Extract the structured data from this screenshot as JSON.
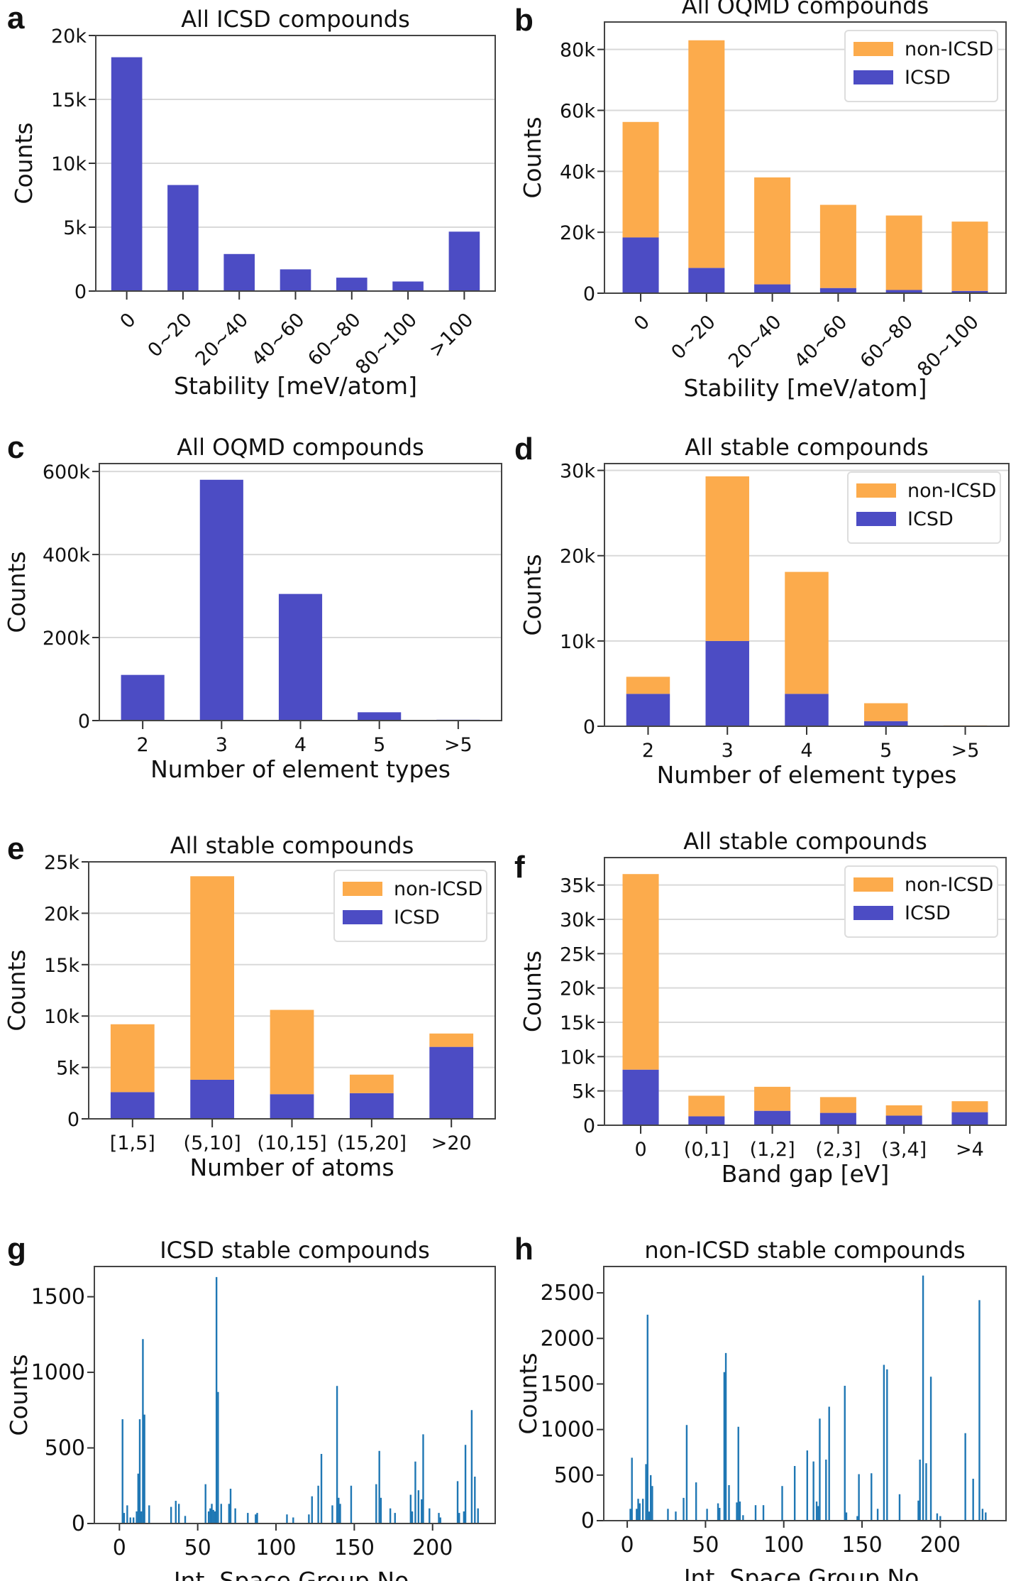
{
  "colors": {
    "icsd": "#4c4cc4",
    "non_icsd": "#fcab4c",
    "spike": "#1f77b4",
    "grid": "#d9d9d9"
  },
  "chart_data": [
    {
      "letter": "a",
      "type": "bar",
      "title": "All ICSD compounds",
      "xlabel": "Stability [meV/atom]",
      "ylabel": "Counts",
      "categories": [
        "0",
        "0~20",
        "20~40",
        "40~60",
        "60~80",
        "80~100",
        ">100"
      ],
      "ylim": [
        0,
        20000
      ],
      "yticks": [
        0,
        5000,
        10000,
        15000,
        20000
      ],
      "yticklabels": [
        "0",
        "5k",
        "10k",
        "15k",
        "20k"
      ],
      "rotate_xticks": true,
      "grid": true,
      "series": [
        {
          "values": [
            18300,
            8300,
            2900,
            1700,
            1050,
            750,
            4650
          ],
          "color": "icsd"
        }
      ]
    },
    {
      "letter": "b",
      "type": "bar",
      "stacked": true,
      "title": "All OQMD compounds",
      "xlabel": "Stability [meV/atom]",
      "ylabel": "Counts",
      "categories": [
        "0",
        "0~20",
        "20~40",
        "40~60",
        "60~80",
        "80~100"
      ],
      "ylim": [
        0,
        89000
      ],
      "yticks": [
        0,
        20000,
        40000,
        60000,
        80000
      ],
      "yticklabels": [
        "0",
        "20k",
        "40k",
        "60k",
        "80k"
      ],
      "rotate_xticks": true,
      "grid": true,
      "legend": "top-right",
      "series": [
        {
          "name": "ICSD",
          "values": [
            18300,
            8300,
            2900,
            1700,
            1050,
            750
          ],
          "color": "icsd"
        },
        {
          "name": "non-ICSD",
          "values": [
            37900,
            74700,
            35100,
            27300,
            24450,
            22750
          ],
          "color": "non_icsd"
        }
      ]
    },
    {
      "letter": "c",
      "type": "bar",
      "title": "All OQMD compounds",
      "xlabel": "Number of element types",
      "ylabel": "Counts",
      "categories": [
        "2",
        "3",
        "4",
        "5",
        ">5"
      ],
      "ylim": [
        0,
        619000
      ],
      "yticks": [
        0,
        200000,
        400000,
        600000
      ],
      "yticklabels": [
        "0",
        "200k",
        "400k",
        "600k"
      ],
      "grid": true,
      "series": [
        {
          "values": [
            110000,
            580000,
            305000,
            20000,
            2000
          ],
          "color": "icsd"
        }
      ]
    },
    {
      "letter": "d",
      "type": "bar",
      "stacked": true,
      "title": "All stable compounds",
      "xlabel": "Number of element types",
      "ylabel": "Counts",
      "categories": [
        "2",
        "3",
        "4",
        "5",
        ">5"
      ],
      "ylim": [
        0,
        30800
      ],
      "yticks": [
        0,
        10000,
        20000,
        30000
      ],
      "yticklabels": [
        "0",
        "10k",
        "20k",
        "30k"
      ],
      "grid": true,
      "legend": "top-right",
      "series": [
        {
          "name": "ICSD",
          "values": [
            3800,
            10000,
            3800,
            600,
            50
          ],
          "color": "icsd"
        },
        {
          "name": "non-ICSD",
          "values": [
            2000,
            19300,
            14300,
            2100,
            50
          ],
          "color": "non_icsd"
        }
      ]
    },
    {
      "letter": "e",
      "type": "bar",
      "stacked": true,
      "title": "All stable compounds",
      "xlabel": "Number of atoms",
      "ylabel": "Counts",
      "categories": [
        "[1,5]",
        "(5,10]",
        "(10,15]",
        "(15,20]",
        ">20"
      ],
      "ylim": [
        0,
        25000
      ],
      "yticks": [
        0,
        5000,
        10000,
        15000,
        20000,
        25000
      ],
      "yticklabels": [
        "0",
        "5k",
        "10k",
        "15k",
        "20k",
        "25k"
      ],
      "grid": true,
      "legend": "top-right",
      "series": [
        {
          "name": "ICSD",
          "values": [
            2600,
            3800,
            2400,
            2500,
            7000
          ],
          "color": "icsd"
        },
        {
          "name": "non-ICSD",
          "values": [
            6600,
            19800,
            8200,
            1800,
            1300
          ],
          "color": "non_icsd"
        }
      ]
    },
    {
      "letter": "f",
      "type": "bar",
      "stacked": true,
      "title": "All stable compounds",
      "xlabel": "Band gap [eV]",
      "ylabel": "Counts",
      "categories": [
        "0",
        "(0,1]",
        "(1,2]",
        "(2,3]",
        "(3,4]",
        ">4"
      ],
      "ylim": [
        0,
        39000
      ],
      "yticks": [
        0,
        5000,
        10000,
        15000,
        20000,
        25000,
        30000,
        35000
      ],
      "yticklabels": [
        "0",
        "5k",
        "10k",
        "15k",
        "20k",
        "25k",
        "30k",
        "35k"
      ],
      "grid": true,
      "legend": "top-right",
      "series": [
        {
          "name": "ICSD",
          "values": [
            8100,
            1300,
            2100,
            1800,
            1400,
            1900
          ],
          "color": "icsd"
        },
        {
          "name": "non-ICSD",
          "values": [
            28500,
            3000,
            3500,
            2300,
            1500,
            1600
          ],
          "color": "non_icsd"
        }
      ]
    },
    {
      "letter": "g",
      "type": "bar",
      "spikes": true,
      "title": "ICSD stable compounds",
      "xlabel": "Int. Space Group No.",
      "ylabel": "Counts",
      "xlim": [
        -16,
        240
      ],
      "xticks": [
        0,
        50,
        100,
        150,
        200
      ],
      "ylim": [
        0,
        1700
      ],
      "yticks": [
        0,
        500,
        1000,
        1500
      ],
      "grid": false,
      "points": [
        [
          2,
          690
        ],
        [
          3,
          70
        ],
        [
          5,
          120
        ],
        [
          7,
          40
        ],
        [
          9,
          40
        ],
        [
          11,
          80
        ],
        [
          12,
          330
        ],
        [
          13,
          690
        ],
        [
          14,
          80
        ],
        [
          15,
          1220
        ],
        [
          16,
          720
        ],
        [
          19,
          120
        ],
        [
          33,
          110
        ],
        [
          36,
          150
        ],
        [
          38,
          130
        ],
        [
          42,
          50
        ],
        [
          55,
          260
        ],
        [
          57,
          80
        ],
        [
          58,
          100
        ],
        [
          59,
          130
        ],
        [
          60,
          90
        ],
        [
          61,
          80
        ],
        [
          62,
          1630
        ],
        [
          63,
          870
        ],
        [
          65,
          130
        ],
        [
          70,
          130
        ],
        [
          71,
          230
        ],
        [
          74,
          100
        ],
        [
          82,
          70
        ],
        [
          87,
          60
        ],
        [
          88,
          70
        ],
        [
          107,
          60
        ],
        [
          111,
          40
        ],
        [
          121,
          60
        ],
        [
          123,
          180
        ],
        [
          127,
          250
        ],
        [
          129,
          460
        ],
        [
          136,
          120
        ],
        [
          139,
          910
        ],
        [
          140,
          170
        ],
        [
          141,
          130
        ],
        [
          148,
          250
        ],
        [
          164,
          260
        ],
        [
          166,
          480
        ],
        [
          167,
          170
        ],
        [
          173,
          100
        ],
        [
          176,
          70
        ],
        [
          186,
          190
        ],
        [
          187,
          80
        ],
        [
          189,
          410
        ],
        [
          191,
          220
        ],
        [
          193,
          160
        ],
        [
          194,
          590
        ],
        [
          198,
          100
        ],
        [
          204,
          70
        ],
        [
          205,
          40
        ],
        [
          216,
          280
        ],
        [
          217,
          70
        ],
        [
          220,
          80
        ],
        [
          221,
          520
        ],
        [
          225,
          750
        ],
        [
          227,
          310
        ],
        [
          229,
          100
        ]
      ]
    },
    {
      "letter": "h",
      "type": "bar",
      "spikes": true,
      "title": "non-ICSD stable compounds",
      "xlabel": "Int. Space Group No.",
      "ylabel": "Counts",
      "xlim": [
        -15,
        242
      ],
      "xticks": [
        0,
        50,
        100,
        150,
        200
      ],
      "ylim": [
        0,
        2789
      ],
      "yticks": [
        0,
        500,
        1000,
        1500,
        2000,
        2500
      ],
      "grid": false,
      "points": [
        [
          2,
          130
        ],
        [
          3,
          690
        ],
        [
          6,
          130
        ],
        [
          7,
          240
        ],
        [
          8,
          190
        ],
        [
          10,
          240
        ],
        [
          12,
          620
        ],
        [
          13,
          2260
        ],
        [
          14,
          100
        ],
        [
          15,
          500
        ],
        [
          16,
          380
        ],
        [
          26,
          130
        ],
        [
          31,
          100
        ],
        [
          36,
          250
        ],
        [
          38,
          1050
        ],
        [
          44,
          420
        ],
        [
          51,
          130
        ],
        [
          58,
          190
        ],
        [
          59,
          140
        ],
        [
          62,
          1630
        ],
        [
          63,
          1840
        ],
        [
          65,
          390
        ],
        [
          70,
          200
        ],
        [
          71,
          1030
        ],
        [
          72,
          210
        ],
        [
          74,
          60
        ],
        [
          82,
          170
        ],
        [
          87,
          170
        ],
        [
          99,
          380
        ],
        [
          107,
          600
        ],
        [
          115,
          770
        ],
        [
          119,
          650
        ],
        [
          121,
          210
        ],
        [
          122,
          160
        ],
        [
          123,
          1120
        ],
        [
          127,
          670
        ],
        [
          129,
          1250
        ],
        [
          139,
          1480
        ],
        [
          140,
          90
        ],
        [
          147,
          50
        ],
        [
          148,
          510
        ],
        [
          156,
          520
        ],
        [
          160,
          130
        ],
        [
          164,
          1710
        ],
        [
          166,
          1660
        ],
        [
          174,
          290
        ],
        [
          186,
          220
        ],
        [
          187,
          670
        ],
        [
          189,
          2690
        ],
        [
          191,
          630
        ],
        [
          194,
          1580
        ],
        [
          198,
          80
        ],
        [
          200,
          50
        ],
        [
          216,
          960
        ],
        [
          221,
          460
        ],
        [
          225,
          2420
        ],
        [
          227,
          130
        ],
        [
          229,
          90
        ]
      ]
    }
  ]
}
